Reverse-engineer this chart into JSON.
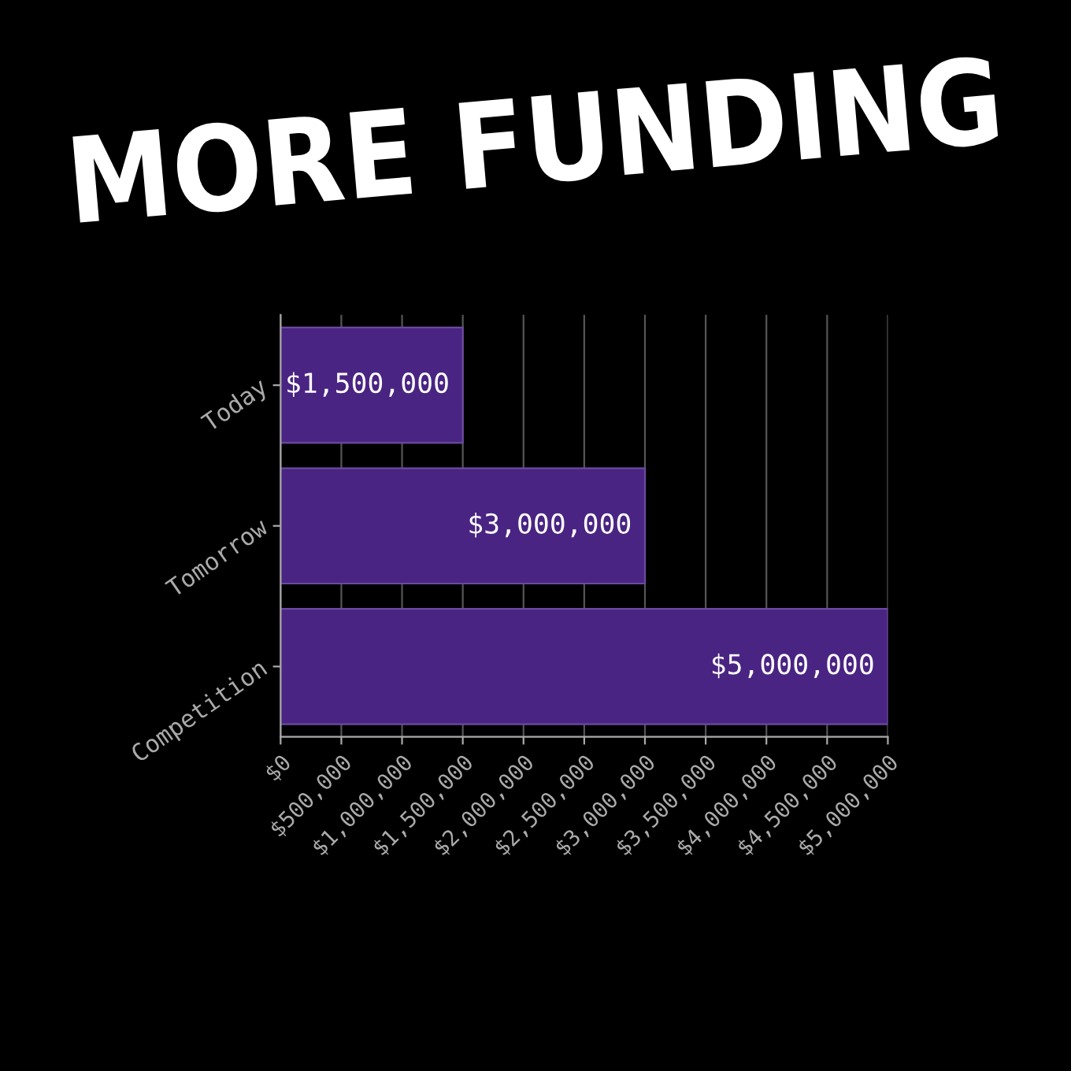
{
  "chart_data": {
    "type": "bar",
    "orientation": "horizontal",
    "title": "MORE FUNDING",
    "categories": [
      "Today",
      "Tomorrow",
      "Competition"
    ],
    "values": [
      1500000,
      3000000,
      5000000
    ],
    "value_labels": [
      "$1,500,000",
      "$3,000,000",
      "$5,000,000"
    ],
    "color": "#4a2482",
    "xlim": [
      0,
      5000000
    ],
    "xticks": [
      {
        "value": 0,
        "label": "$0"
      },
      {
        "value": 500000,
        "label": "$500,000"
      },
      {
        "value": 1000000,
        "label": "$1,000,000"
      },
      {
        "value": 1500000,
        "label": "$1,500,000"
      },
      {
        "value": 2000000,
        "label": "$2,000,000"
      },
      {
        "value": 2500000,
        "label": "$2,500,000"
      },
      {
        "value": 3000000,
        "label": "$3,000,000"
      },
      {
        "value": 3500000,
        "label": "$3,500,000"
      },
      {
        "value": 4000000,
        "label": "$4,000,000"
      },
      {
        "value": 4500000,
        "label": "$4,500,000"
      },
      {
        "value": 5000000,
        "label": "$5,000,000"
      }
    ],
    "grid": "x"
  }
}
